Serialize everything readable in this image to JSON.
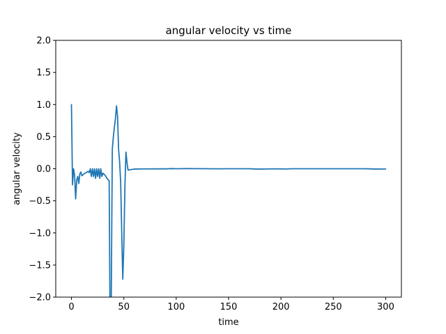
{
  "chart_data": {
    "type": "line",
    "title": "angular velocity vs time",
    "xlabel": "time",
    "ylabel": "angular velocity",
    "xlim": [
      -15,
      315
    ],
    "ylim": [
      -2.0,
      2.0
    ],
    "xticks": [
      0,
      50,
      100,
      150,
      200,
      250,
      300
    ],
    "xtick_labels": [
      "0",
      "50",
      "100",
      "150",
      "200",
      "250",
      "300"
    ],
    "yticks": [
      -2.0,
      -1.5,
      -1.0,
      -0.5,
      0.0,
      0.5,
      1.0,
      1.5,
      2.0
    ],
    "ytick_labels": [
      "−2.0",
      "−1.5",
      "−1.0",
      "−0.5",
      "0.0",
      "0.5",
      "1.0",
      "1.5",
      "2.0"
    ],
    "grid": false,
    "series": [
      {
        "color": "#1f77b4",
        "x": [
          0,
          1,
          2,
          3,
          4,
          5,
          6,
          7,
          8,
          9,
          10,
          12,
          14,
          16,
          17,
          18,
          19,
          20,
          21,
          22,
          23,
          24,
          25,
          26,
          27,
          28,
          29,
          30,
          32,
          34,
          36,
          37,
          37.6,
          38,
          39,
          40,
          41,
          42,
          43,
          44,
          45,
          46,
          47,
          48,
          49,
          50,
          51,
          52,
          53,
          54,
          56,
          60,
          70,
          80,
          90,
          95,
          100,
          110,
          120,
          130,
          140,
          150,
          160,
          170,
          176,
          180,
          190,
          200,
          205,
          210,
          220,
          230,
          240,
          250,
          260,
          270,
          280,
          285,
          290,
          300
        ],
        "y": [
          1.0,
          -0.25,
          0.0,
          -0.1,
          -0.47,
          -0.18,
          -0.12,
          -0.23,
          -0.08,
          -0.05,
          -0.11,
          -0.08,
          -0.06,
          -0.04,
          -0.06,
          0.0,
          -0.12,
          0.0,
          -0.12,
          0.0,
          -0.15,
          0.0,
          -0.12,
          0.0,
          -0.15,
          0.0,
          -0.12,
          -0.07,
          -0.1,
          -0.15,
          -0.19,
          -2.8,
          -2.3,
          -2.0,
          0.3,
          0.5,
          0.65,
          0.78,
          0.98,
          0.82,
          0.3,
          0.1,
          -0.22,
          -1.0,
          -1.72,
          -1.2,
          -0.3,
          0.26,
          0.1,
          -0.02,
          -0.015,
          -0.005,
          -0.003,
          -0.002,
          -0.002,
          0.002,
          0.0,
          0.002,
          0.001,
          0.0,
          -0.001,
          0.0,
          0.0,
          0.0,
          -0.005,
          -0.005,
          -0.003,
          -0.002,
          -0.004,
          0.0,
          0.0,
          0.0,
          0.0,
          0.0,
          0.0,
          0.0,
          0.0,
          -0.002,
          -0.005,
          -0.004
        ]
      }
    ]
  }
}
